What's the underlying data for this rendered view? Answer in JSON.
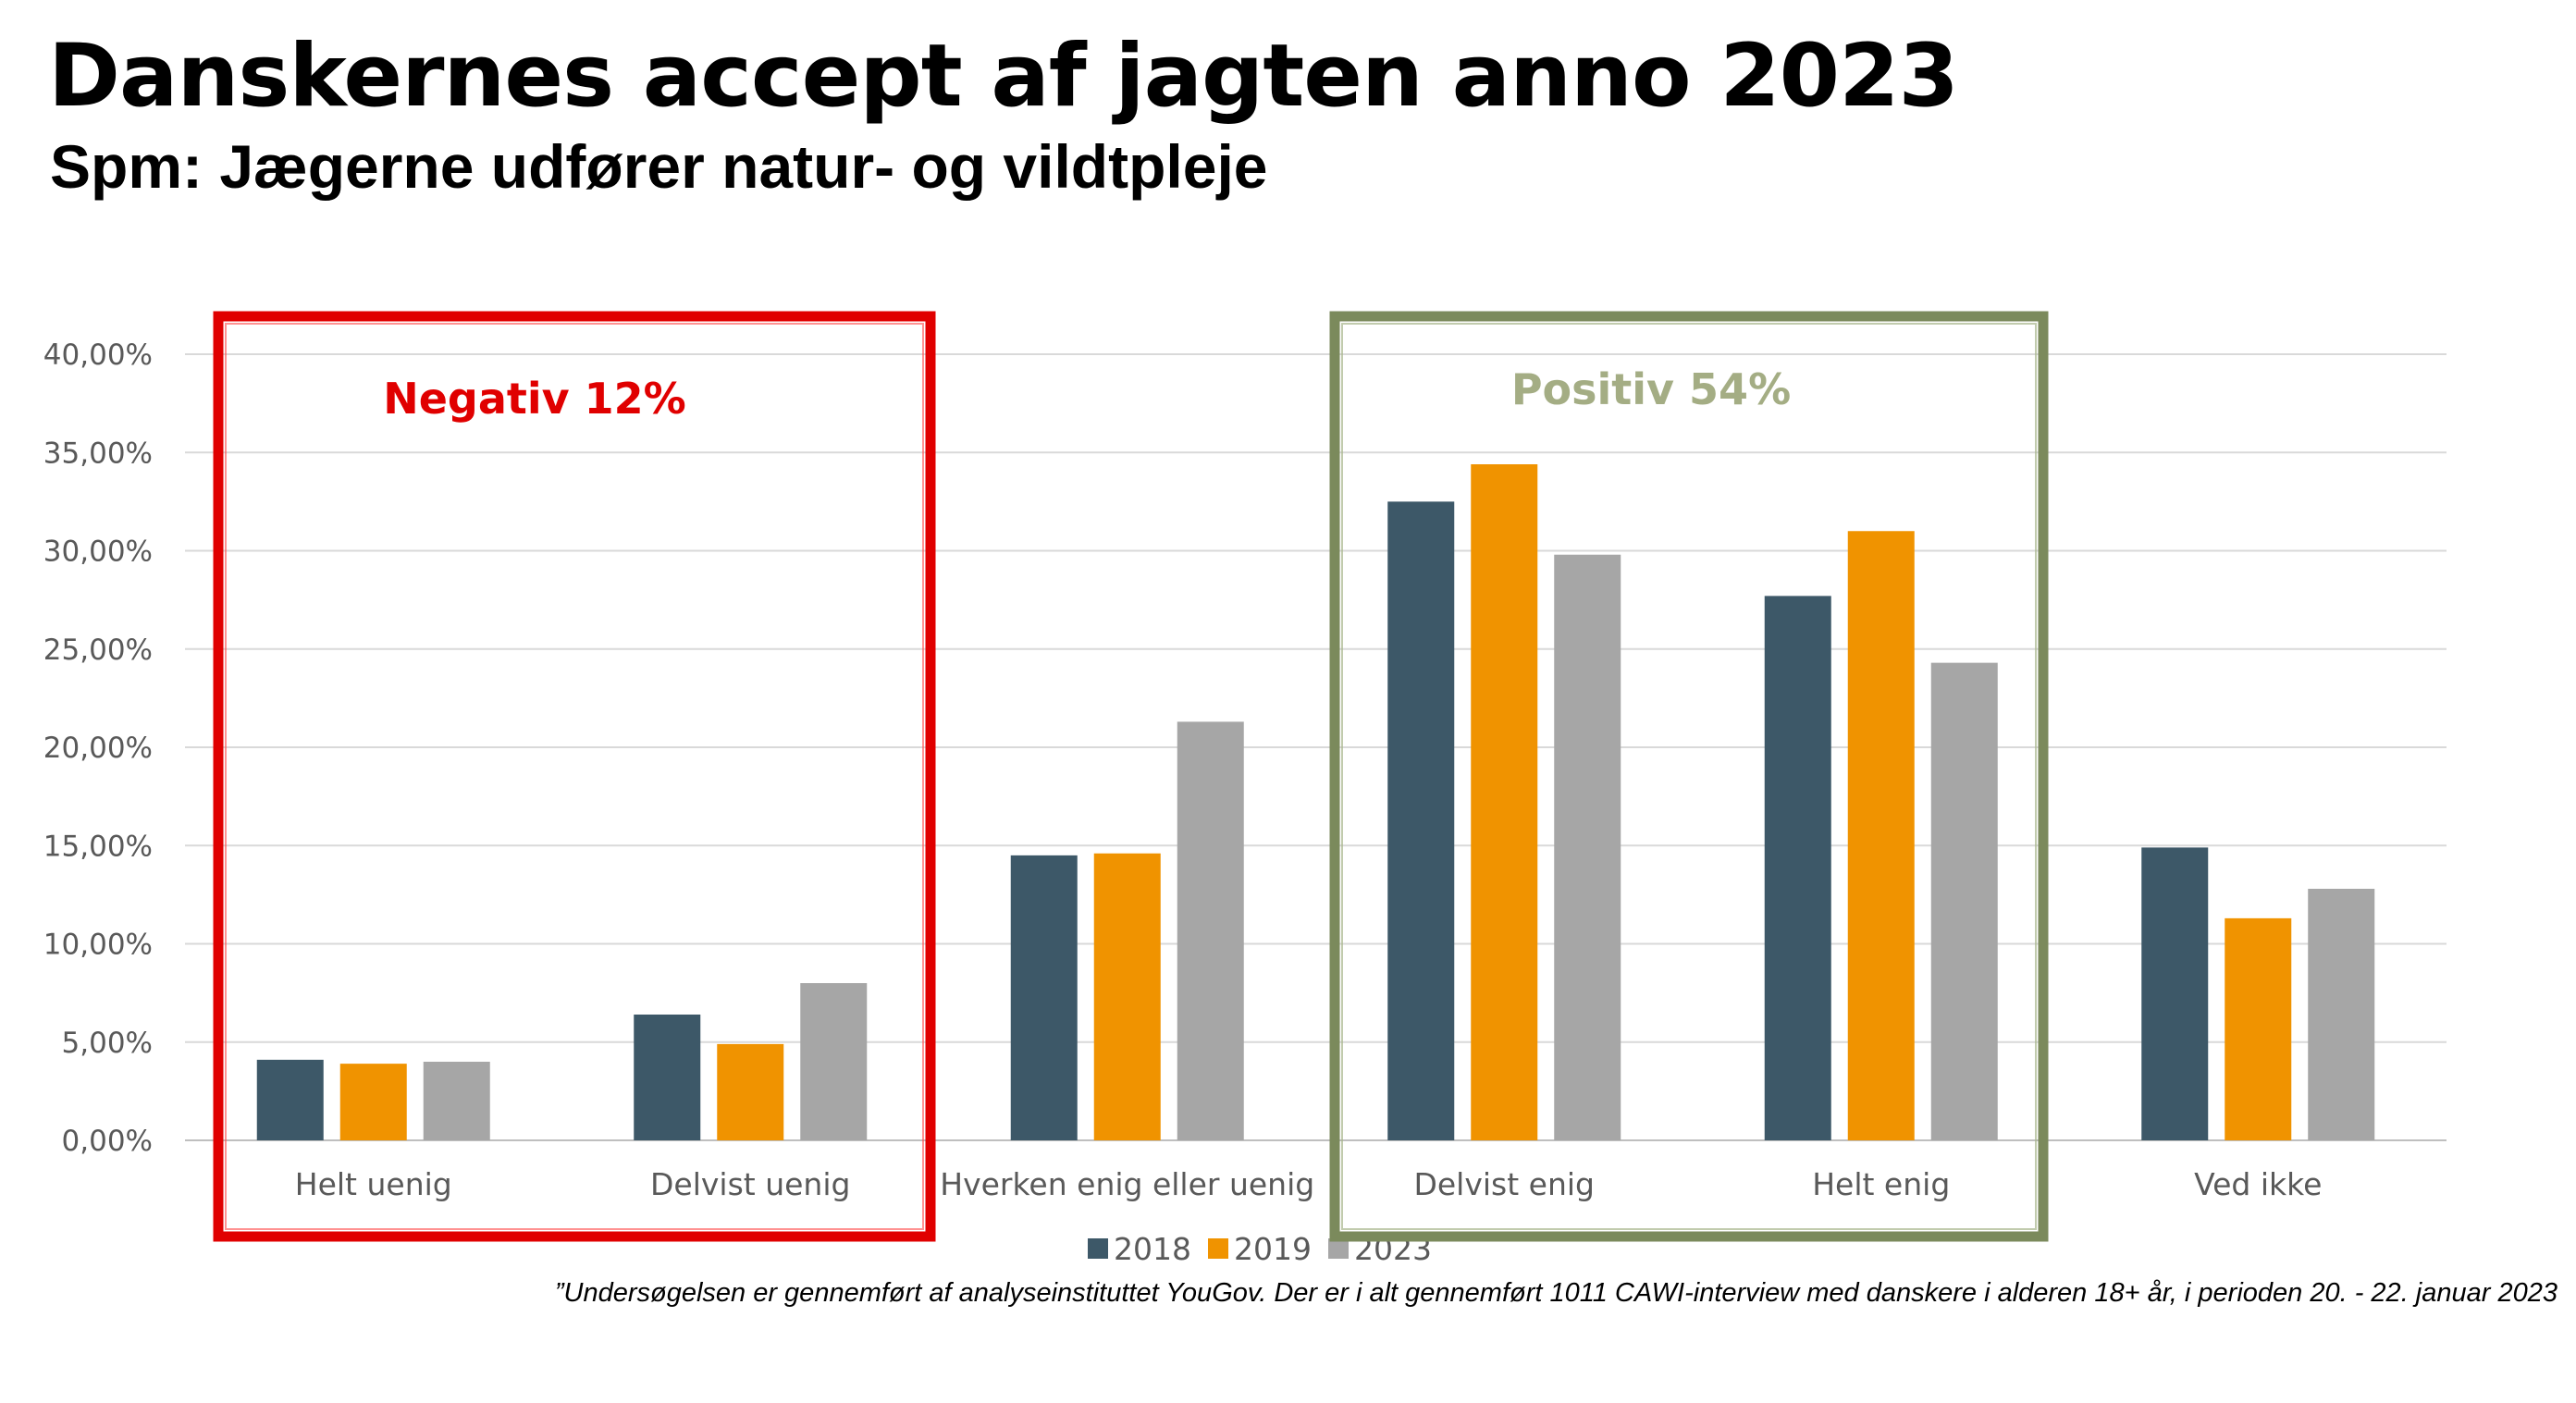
{
  "title": "Danskernes accept af jagten anno 2023",
  "subtitle": "Spm: Jægerne udfører natur- og vildtpleje",
  "footnote": "”Undersøgelsen er gennemført af analyseinstituttet YouGov. Der er i alt gennemført 1011 CAWI-interview med danskere i alderen 18+ år, i perioden 20. - 22. januar 2023",
  "annotations": {
    "negative": {
      "label": "Negativ 12%",
      "color": "#e00000"
    },
    "positive": {
      "label": "Positiv 54%",
      "color": "#a4ad84"
    }
  },
  "chart_data": {
    "type": "bar",
    "categories": [
      "Helt uenig",
      "Delvist uenig",
      "Hverken enig eller uenig",
      "Delvist enig",
      "Helt enig",
      "Ved ikke"
    ],
    "series": [
      {
        "name": "2018",
        "color": "#3d5868",
        "values": [
          4.1,
          6.4,
          14.5,
          32.5,
          27.7,
          14.9
        ]
      },
      {
        "name": "2019",
        "color": "#f09300",
        "values": [
          3.9,
          4.9,
          14.6,
          34.4,
          31.0,
          11.3
        ]
      },
      {
        "name": "2023",
        "color": "#a6a6a6",
        "values": [
          4.0,
          8.0,
          21.3,
          29.8,
          24.3,
          12.8
        ]
      }
    ],
    "ylim": [
      0,
      40
    ],
    "yticks": [
      "0,00%",
      "5,00%",
      "10,00%",
      "15,00%",
      "20,00%",
      "25,00%",
      "30,00%",
      "35,00%",
      "40,00%"
    ],
    "xlabel": "",
    "ylabel": "",
    "grid": true,
    "legend": "bottom-center"
  }
}
